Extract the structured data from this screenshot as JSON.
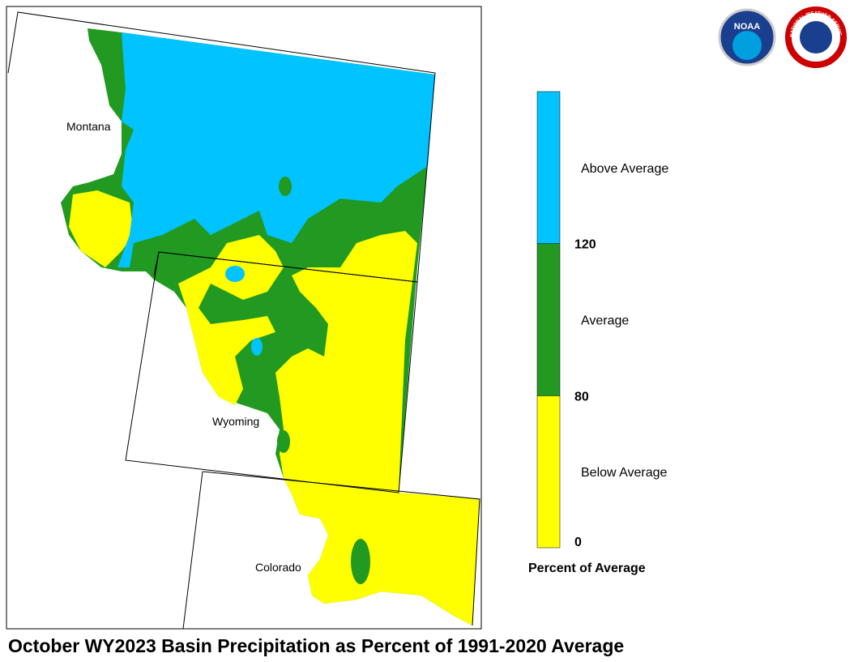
{
  "map": {
    "title": "October WY2023 Basin Precipitation as Percent of 1991-2020 Average",
    "states": [
      {
        "label": "Montana"
      },
      {
        "label": "Wyoming"
      },
      {
        "label": "Colorado"
      }
    ]
  },
  "legend": {
    "title": "Percent of Average",
    "classes": [
      {
        "label": "Below Average",
        "color": "#ffff00"
      },
      {
        "label": "Average",
        "color": "#229a22"
      },
      {
        "label": "Above Average",
        "color": "#00c3ff"
      }
    ],
    "breaks": [
      0,
      80,
      120
    ]
  },
  "logos": {
    "noaa": "NOAA",
    "nws": "NATIONAL WEATHER SERVICE"
  }
}
